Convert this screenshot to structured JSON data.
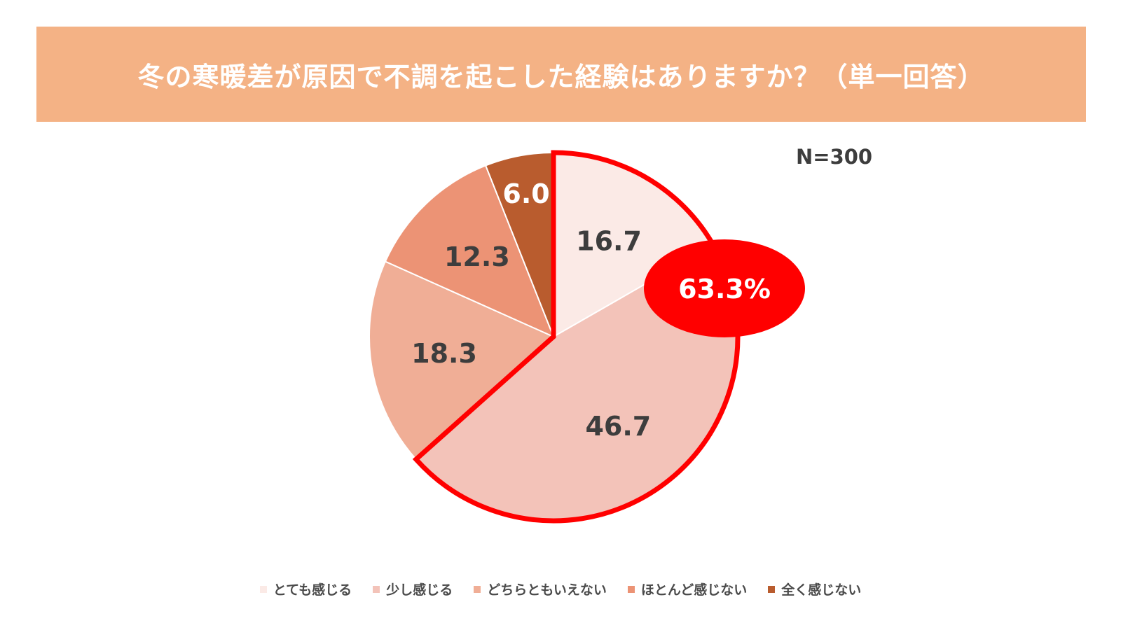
{
  "chart_data": {
    "type": "pie",
    "title": "冬の寒暖差が原因で不調を起こした経験はありますか？（単一回答）",
    "sample_note": "N=300",
    "start": "12 o'clock",
    "direction": "clockwise",
    "slices": [
      {
        "name": "とても感じる",
        "label": "16.7",
        "value": 16.7,
        "color": "#FBEAE6",
        "text_color": "#3d3d3d"
      },
      {
        "name": "少し感じる",
        "label": "46.7",
        "value": 46.7,
        "color": "#F3C3B9",
        "text_color": "#3d3d3d"
      },
      {
        "name": "どちらともいえない",
        "label": "18.3",
        "value": 18.3,
        "color": "#F0AE96",
        "text_color": "#3d3d3d"
      },
      {
        "name": "ほとんど感じない",
        "label": "12.3",
        "value": 12.3,
        "color": "#EC9375",
        "text_color": "#3d3d3d"
      },
      {
        "name": "全く感じない",
        "label": "6.0",
        "value": 6.0,
        "color": "#B95C2E",
        "text_color": "#ffffff"
      }
    ],
    "highlight": {
      "slices": [
        "とても感じる",
        "少し感じる"
      ],
      "total_label": "63.3%",
      "outline_color": "#FF0000",
      "callout_color": "#FF0000",
      "callout_text_color": "#ffffff"
    },
    "legend": {
      "position": "bottom"
    }
  }
}
